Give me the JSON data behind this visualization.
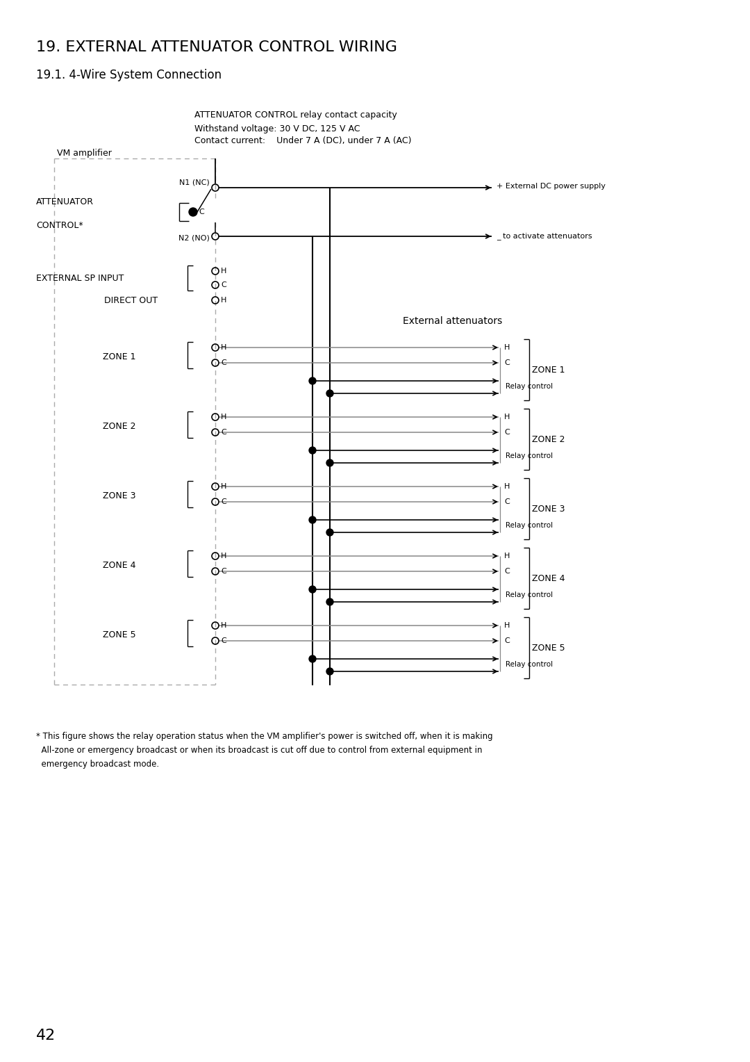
{
  "title": "19. EXTERNAL ATTENUATOR CONTROL WIRING",
  "subtitle": "19.1. 4-Wire System Connection",
  "relay_info_line1": "ATTENUATOR CONTROL relay contact capacity",
  "relay_info_line2": "Withstand voltage: 30 V DC, 125 V AC",
  "relay_info_line3": "Contact current:    Under 7 A (DC), under 7 A (AC)",
  "vm_amplifier_label": "VM amplifier",
  "attenuator_control_label1": "ATTENUATOR",
  "attenuator_control_label2": "CONTROL*",
  "n1_label": "N1 (NC)",
  "n2_label": "N2 (NO)",
  "external_sp_label": "EXTERNAL SP INPUT",
  "direct_out_label": "DIRECT OUT",
  "external_attenuators_label": "External attenuators",
  "dc_supply_label1": "+ External DC power supply",
  "dc_supply_label2": "_ to activate attenuators",
  "relay_control_label": "Relay control",
  "zones": [
    "ZONE 1",
    "ZONE 2",
    "ZONE 3",
    "ZONE 4",
    "ZONE 5"
  ],
  "footnote_line1": "* This figure shows the relay operation status when the VM amplifier's power is switched off, when it is making",
  "footnote_line2": "  All-zone or emergency broadcast or when its broadcast is cut off due to control from external equipment in",
  "footnote_line3": "  emergency broadcast mode.",
  "page_number": "42",
  "bg_color": "#ffffff",
  "line_color": "#000000",
  "dash_color": "#aaaaaa",
  "gray_color": "#888888"
}
